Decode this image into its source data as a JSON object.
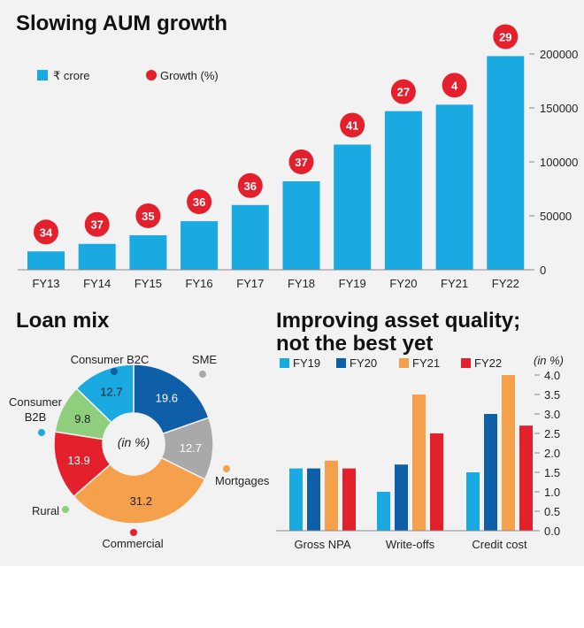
{
  "colors": {
    "bar": "#1aa9e0",
    "growth_dot": "#e3202b",
    "fy19": "#1aa9e0",
    "fy20": "#0e5fa8",
    "fy21": "#f5a04a",
    "fy22": "#e3202b",
    "consumer_b2c": "#0e5fa8",
    "sme": "#a9a9a9",
    "mortgages": "#f5a04a",
    "commercial": "#e3202b",
    "rural": "#8fce7d",
    "consumer_b2b": "#1aa9e0"
  },
  "chart_data": [
    {
      "type": "bar",
      "title": "Slowing AUM growth",
      "categories": [
        "FY13",
        "FY14",
        "FY15",
        "FY16",
        "FY17",
        "FY18",
        "FY19",
        "FY20",
        "FY21",
        "FY22"
      ],
      "series": [
        {
          "name": "₹ crore",
          "values": [
            17000,
            24000,
            32000,
            45000,
            60000,
            82000,
            116000,
            147000,
            153000,
            198000
          ]
        },
        {
          "name": "Growth (%)",
          "values": [
            34,
            37,
            35,
            36,
            36,
            37,
            41,
            27,
            4,
            29
          ]
        }
      ],
      "yticks": [
        "0",
        "50000",
        "100000",
        "150000",
        "200000"
      ],
      "ylim": [
        0,
        200000
      ],
      "legend": "top-left",
      "grid": false
    },
    {
      "type": "pie",
      "title": "Loan mix",
      "center_label": "(in %)",
      "slices": [
        {
          "label": "Consumer B2C",
          "value": 19.6
        },
        {
          "label": "SME",
          "value": 12.7
        },
        {
          "label": "Mortgages",
          "value": 31.2
        },
        {
          "label": "Commercial",
          "value": 13.9
        },
        {
          "label": "Rural",
          "value": 9.8
        },
        {
          "label": "Consumer B2B",
          "value": 12.7
        }
      ]
    },
    {
      "type": "bar",
      "title": "Improving asset quality;",
      "subtitle": "not the best yet",
      "unit": "(in %)",
      "categories": [
        "Gross NPA",
        "Write-offs",
        "Credit cost"
      ],
      "series": [
        {
          "name": "FY19",
          "values": [
            1.6,
            1.0,
            1.5
          ]
        },
        {
          "name": "FY20",
          "values": [
            1.6,
            1.7,
            3.0
          ]
        },
        {
          "name": "FY21",
          "values": [
            1.8,
            3.5,
            4.0
          ]
        },
        {
          "name": "FY22",
          "values": [
            1.6,
            2.5,
            2.7
          ]
        }
      ],
      "yticks": [
        "0.0",
        "0.5",
        "1.0",
        "1.5",
        "2.0",
        "2.5",
        "3.0",
        "3.5",
        "4.0"
      ],
      "ylim": [
        0,
        4
      ],
      "legend": "top",
      "grid": false
    }
  ]
}
